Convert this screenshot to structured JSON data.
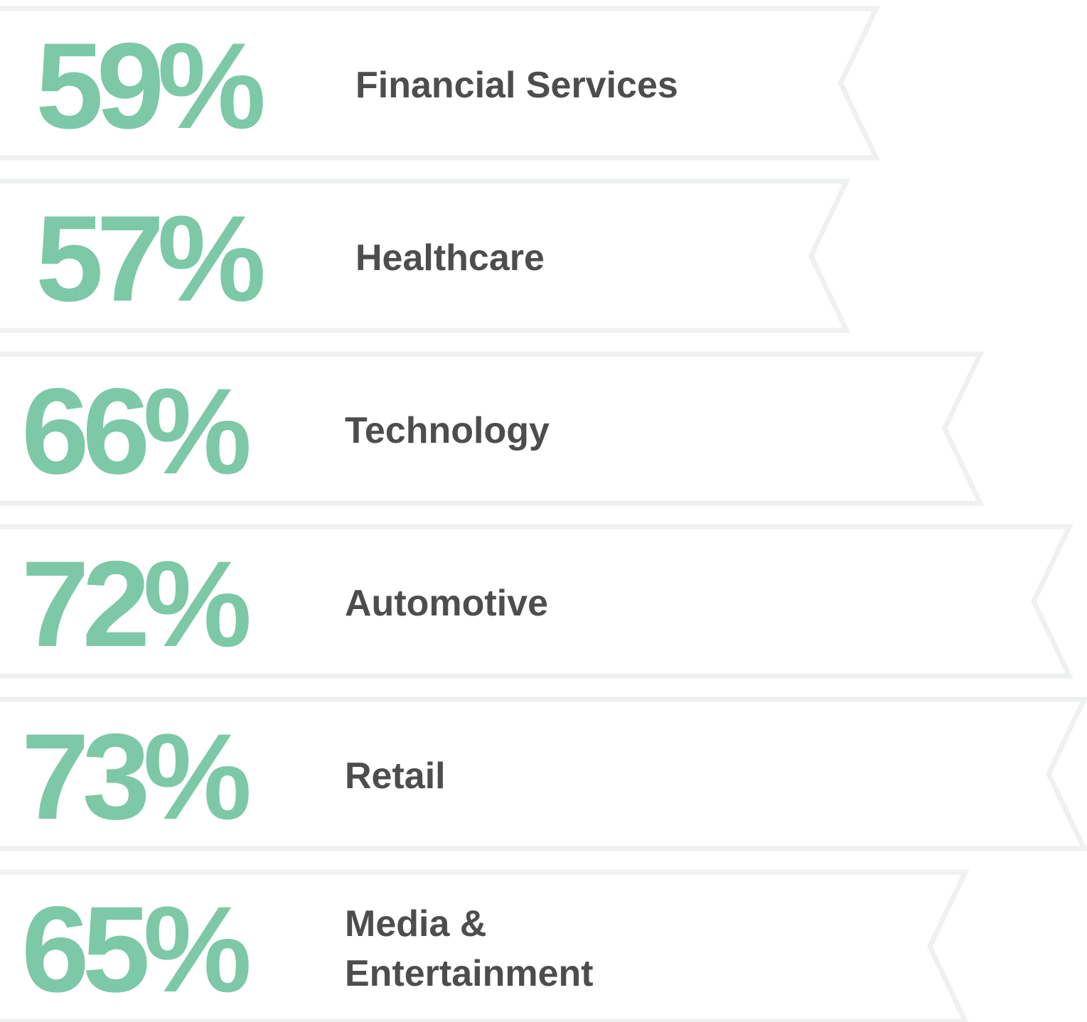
{
  "chart_data": {
    "type": "ribbon-bar",
    "categories": [
      "Financial Services",
      "Healthcare",
      "Technology",
      "Automotive",
      "Retail",
      "Media & Entertainment"
    ],
    "values": [
      59,
      57,
      66,
      72,
      73,
      65
    ],
    "value_labels": [
      "59%",
      "57%",
      "66%",
      "72%",
      "73%",
      "65%"
    ],
    "color": "#7dc8a7"
  }
}
